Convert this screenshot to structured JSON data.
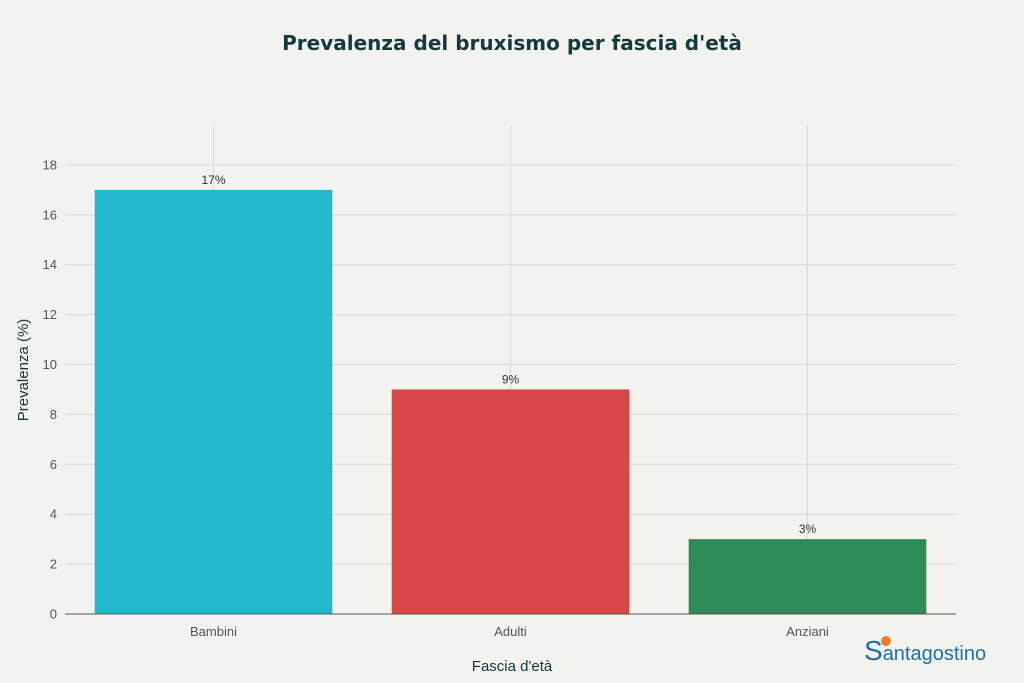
{
  "chart_data": {
    "type": "bar",
    "title": "Prevalenza del bruxismo per fascia d'età",
    "xlabel": "Fascia d'età",
    "ylabel": "Prevalenza (%)",
    "categories": [
      "Bambini",
      "Adulti",
      "Anziani"
    ],
    "values": [
      17,
      9,
      3
    ],
    "data_labels": [
      "17%",
      "9%",
      "3%"
    ],
    "colors": [
      "#21b8cc",
      "#d94646",
      "#2e8b57"
    ],
    "ylim": [
      0,
      19.6
    ],
    "yticks": [
      0,
      2,
      4,
      6,
      8,
      10,
      12,
      14,
      16,
      18
    ],
    "grid": true,
    "legend": "none"
  },
  "logo": {
    "initial": "S",
    "rest": "antagostino",
    "primary_color": "#1f6fa8",
    "accent_color": "#ef7d2d"
  }
}
